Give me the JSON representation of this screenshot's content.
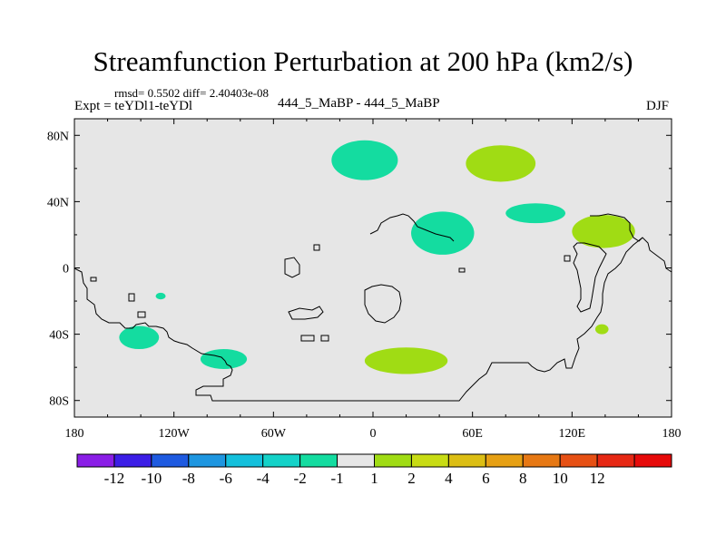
{
  "chart_data": {
    "type": "contour_map",
    "title": "Streamfunction Perturbation at 200 hPa (km2/s)",
    "stats_label": "rmsd= 0.5502 diff= 2.40403e-08",
    "experiment_label": "Expt = teYDl1-teYDl",
    "case_label": "444_5_MaBP - 444_5_MaBP",
    "season": "DJF",
    "x_range": [
      -180,
      180
    ],
    "y_range": [
      -90,
      90
    ],
    "x_ticks": [
      {
        "value": -180,
        "label": "180"
      },
      {
        "value": -120,
        "label": "120W"
      },
      {
        "value": -60,
        "label": "60W"
      },
      {
        "value": 0,
        "label": "0"
      },
      {
        "value": 60,
        "label": "60E"
      },
      {
        "value": 120,
        "label": "120E"
      },
      {
        "value": 180,
        "label": "180"
      }
    ],
    "y_ticks": [
      {
        "value": 80,
        "label": "80N"
      },
      {
        "value": 40,
        "label": "40N"
      },
      {
        "value": 0,
        "label": "0"
      },
      {
        "value": -40,
        "label": "40S"
      },
      {
        "value": -80,
        "label": "80S"
      }
    ],
    "colorbar": {
      "colors": [
        "#8a1ee6",
        "#3c1ee6",
        "#1e5ae0",
        "#1e96e0",
        "#14c0dc",
        "#14d2c8",
        "#14dca0",
        "#e6e6e6",
        "#a0dc14",
        "#c8dc14",
        "#dcbe14",
        "#e6a014",
        "#e67814",
        "#e65014",
        "#e62814",
        "#e60a0a"
      ],
      "labels": [
        "-12",
        "-10",
        "-8",
        "-6",
        "-4",
        "-2",
        "-1",
        "1",
        "2",
        "4",
        "6",
        "8",
        "10",
        "12"
      ]
    },
    "anomalies": [
      {
        "lon": -5,
        "lat": 65,
        "rlon": 20,
        "rlat": 12,
        "value": -1.5,
        "color": "#14dca0"
      },
      {
        "lon": 77,
        "lat": 63,
        "rlon": 21,
        "rlat": 11,
        "value": 1.5,
        "color": "#a0dc14"
      },
      {
        "lon": 98,
        "lat": 33,
        "rlon": 18,
        "rlat": 6,
        "value": -1.5,
        "color": "#14dca0"
      },
      {
        "lon": 42,
        "lat": 21,
        "rlon": 19,
        "rlat": 13,
        "value": -1.5,
        "color": "#14dca0"
      },
      {
        "lon": 139,
        "lat": 22,
        "rlon": 19,
        "rlat": 10,
        "value": 1.5,
        "color": "#a0dc14"
      },
      {
        "lon": -141,
        "lat": -42,
        "rlon": 12,
        "rlat": 7,
        "value": -1.5,
        "color": "#14dca0"
      },
      {
        "lon": -90,
        "lat": -55,
        "rlon": 14,
        "rlat": 6,
        "value": -1.5,
        "color": "#14dca0"
      },
      {
        "lon": 20,
        "lat": -56,
        "rlon": 25,
        "rlat": 8,
        "value": 1.5,
        "color": "#a0dc14"
      },
      {
        "lon": 138,
        "lat": -37,
        "rlon": 4,
        "rlat": 3,
        "value": 1.5,
        "color": "#a0dc14"
      },
      {
        "lon": -128,
        "lat": -17,
        "rlon": 3,
        "rlat": 2,
        "value": -1.5,
        "color": "#14dca0"
      }
    ],
    "background_color": "#e6e6e6"
  }
}
